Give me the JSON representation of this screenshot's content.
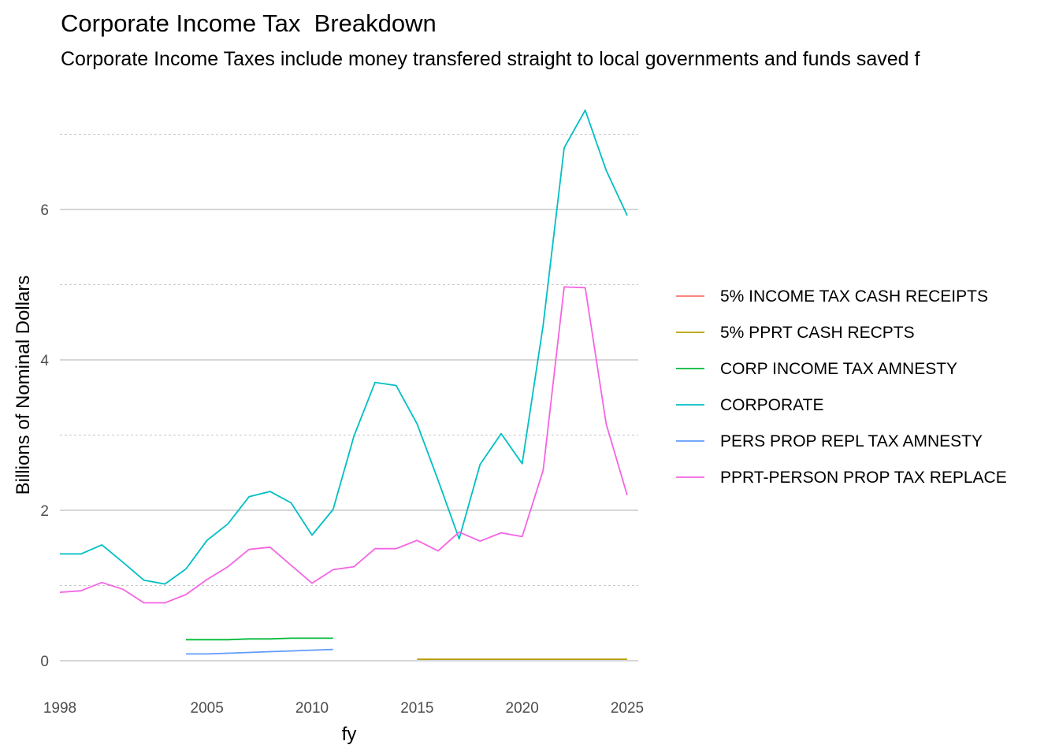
{
  "chart_data": {
    "type": "line",
    "title": "Corporate Income Tax  Breakdown",
    "subtitle": "Corporate Income Taxes include money transfered straight to local governments and funds saved f",
    "xlabel": "fy",
    "ylabel": "Billions of Nominal Dollars",
    "xlim": [
      1998,
      2025
    ],
    "ylim": [
      -0.15,
      7.5
    ],
    "x_ticks": [
      1998,
      2005,
      2010,
      2015,
      2020,
      2025
    ],
    "y_ticks": [
      0,
      2,
      4,
      6
    ],
    "y_minor_ticks": [
      1,
      3,
      5,
      7
    ],
    "grid": true,
    "legend_position": "right",
    "series": [
      {
        "name": "5% INCOME TAX CASH RECEIPTS",
        "color": "#F8766D",
        "x": [],
        "values": []
      },
      {
        "name": "5% PPRT CASH RECPTS",
        "color": "#B79F00",
        "x": [
          2015,
          2016,
          2017,
          2018,
          2019,
          2020,
          2021,
          2022,
          2023,
          2024,
          2025
        ],
        "values": [
          0.02,
          0.02,
          0.02,
          0.02,
          0.02,
          0.02,
          0.02,
          0.02,
          0.02,
          0.02,
          0.02
        ]
      },
      {
        "name": "CORP INCOME TAX AMNESTY",
        "color": "#00BA38",
        "x": [
          2004,
          2005,
          2006,
          2007,
          2008,
          2009,
          2010,
          2011
        ],
        "values": [
          0.28,
          0.28,
          0.28,
          0.29,
          0.29,
          0.3,
          0.3,
          0.3
        ]
      },
      {
        "name": "CORPORATE",
        "color": "#00BFC4",
        "x": [
          1998,
          1999,
          2000,
          2001,
          2002,
          2003,
          2004,
          2005,
          2006,
          2007,
          2008,
          2009,
          2010,
          2011,
          2012,
          2013,
          2014,
          2015,
          2016,
          2017,
          2018,
          2019,
          2020,
          2021,
          2022,
          2023,
          2024,
          2025
        ],
        "values": [
          1.42,
          1.42,
          1.54,
          1.31,
          1.07,
          1.02,
          1.22,
          1.6,
          1.82,
          2.18,
          2.25,
          2.1,
          1.67,
          2.01,
          2.99,
          3.7,
          3.66,
          3.15,
          2.4,
          1.62,
          2.61,
          3.02,
          2.62,
          4.46,
          6.82,
          7.32,
          6.52,
          5.92
        ]
      },
      {
        "name": "PERS PROP REPL TAX AMNESTY",
        "color": "#619CFF",
        "x": [
          2004,
          2005,
          2006,
          2007,
          2008,
          2009,
          2010,
          2011
        ],
        "values": [
          0.09,
          0.09,
          0.1,
          0.11,
          0.12,
          0.13,
          0.14,
          0.15
        ]
      },
      {
        "name": "PPRT-PERSON PROP TAX REPLACE",
        "color": "#F564E3",
        "x": [
          1998,
          1999,
          2000,
          2001,
          2002,
          2003,
          2004,
          2005,
          2006,
          2007,
          2008,
          2009,
          2010,
          2011,
          2012,
          2013,
          2014,
          2015,
          2016,
          2017,
          2018,
          2019,
          2020,
          2021,
          2022,
          2023,
          2024,
          2025
        ],
        "values": [
          0.91,
          0.93,
          1.04,
          0.95,
          0.77,
          0.77,
          0.88,
          1.08,
          1.25,
          1.48,
          1.51,
          1.27,
          1.03,
          1.21,
          1.25,
          1.49,
          1.49,
          1.6,
          1.46,
          1.71,
          1.59,
          1.7,
          1.65,
          2.53,
          4.97,
          4.96,
          3.15,
          2.2
        ]
      }
    ]
  }
}
